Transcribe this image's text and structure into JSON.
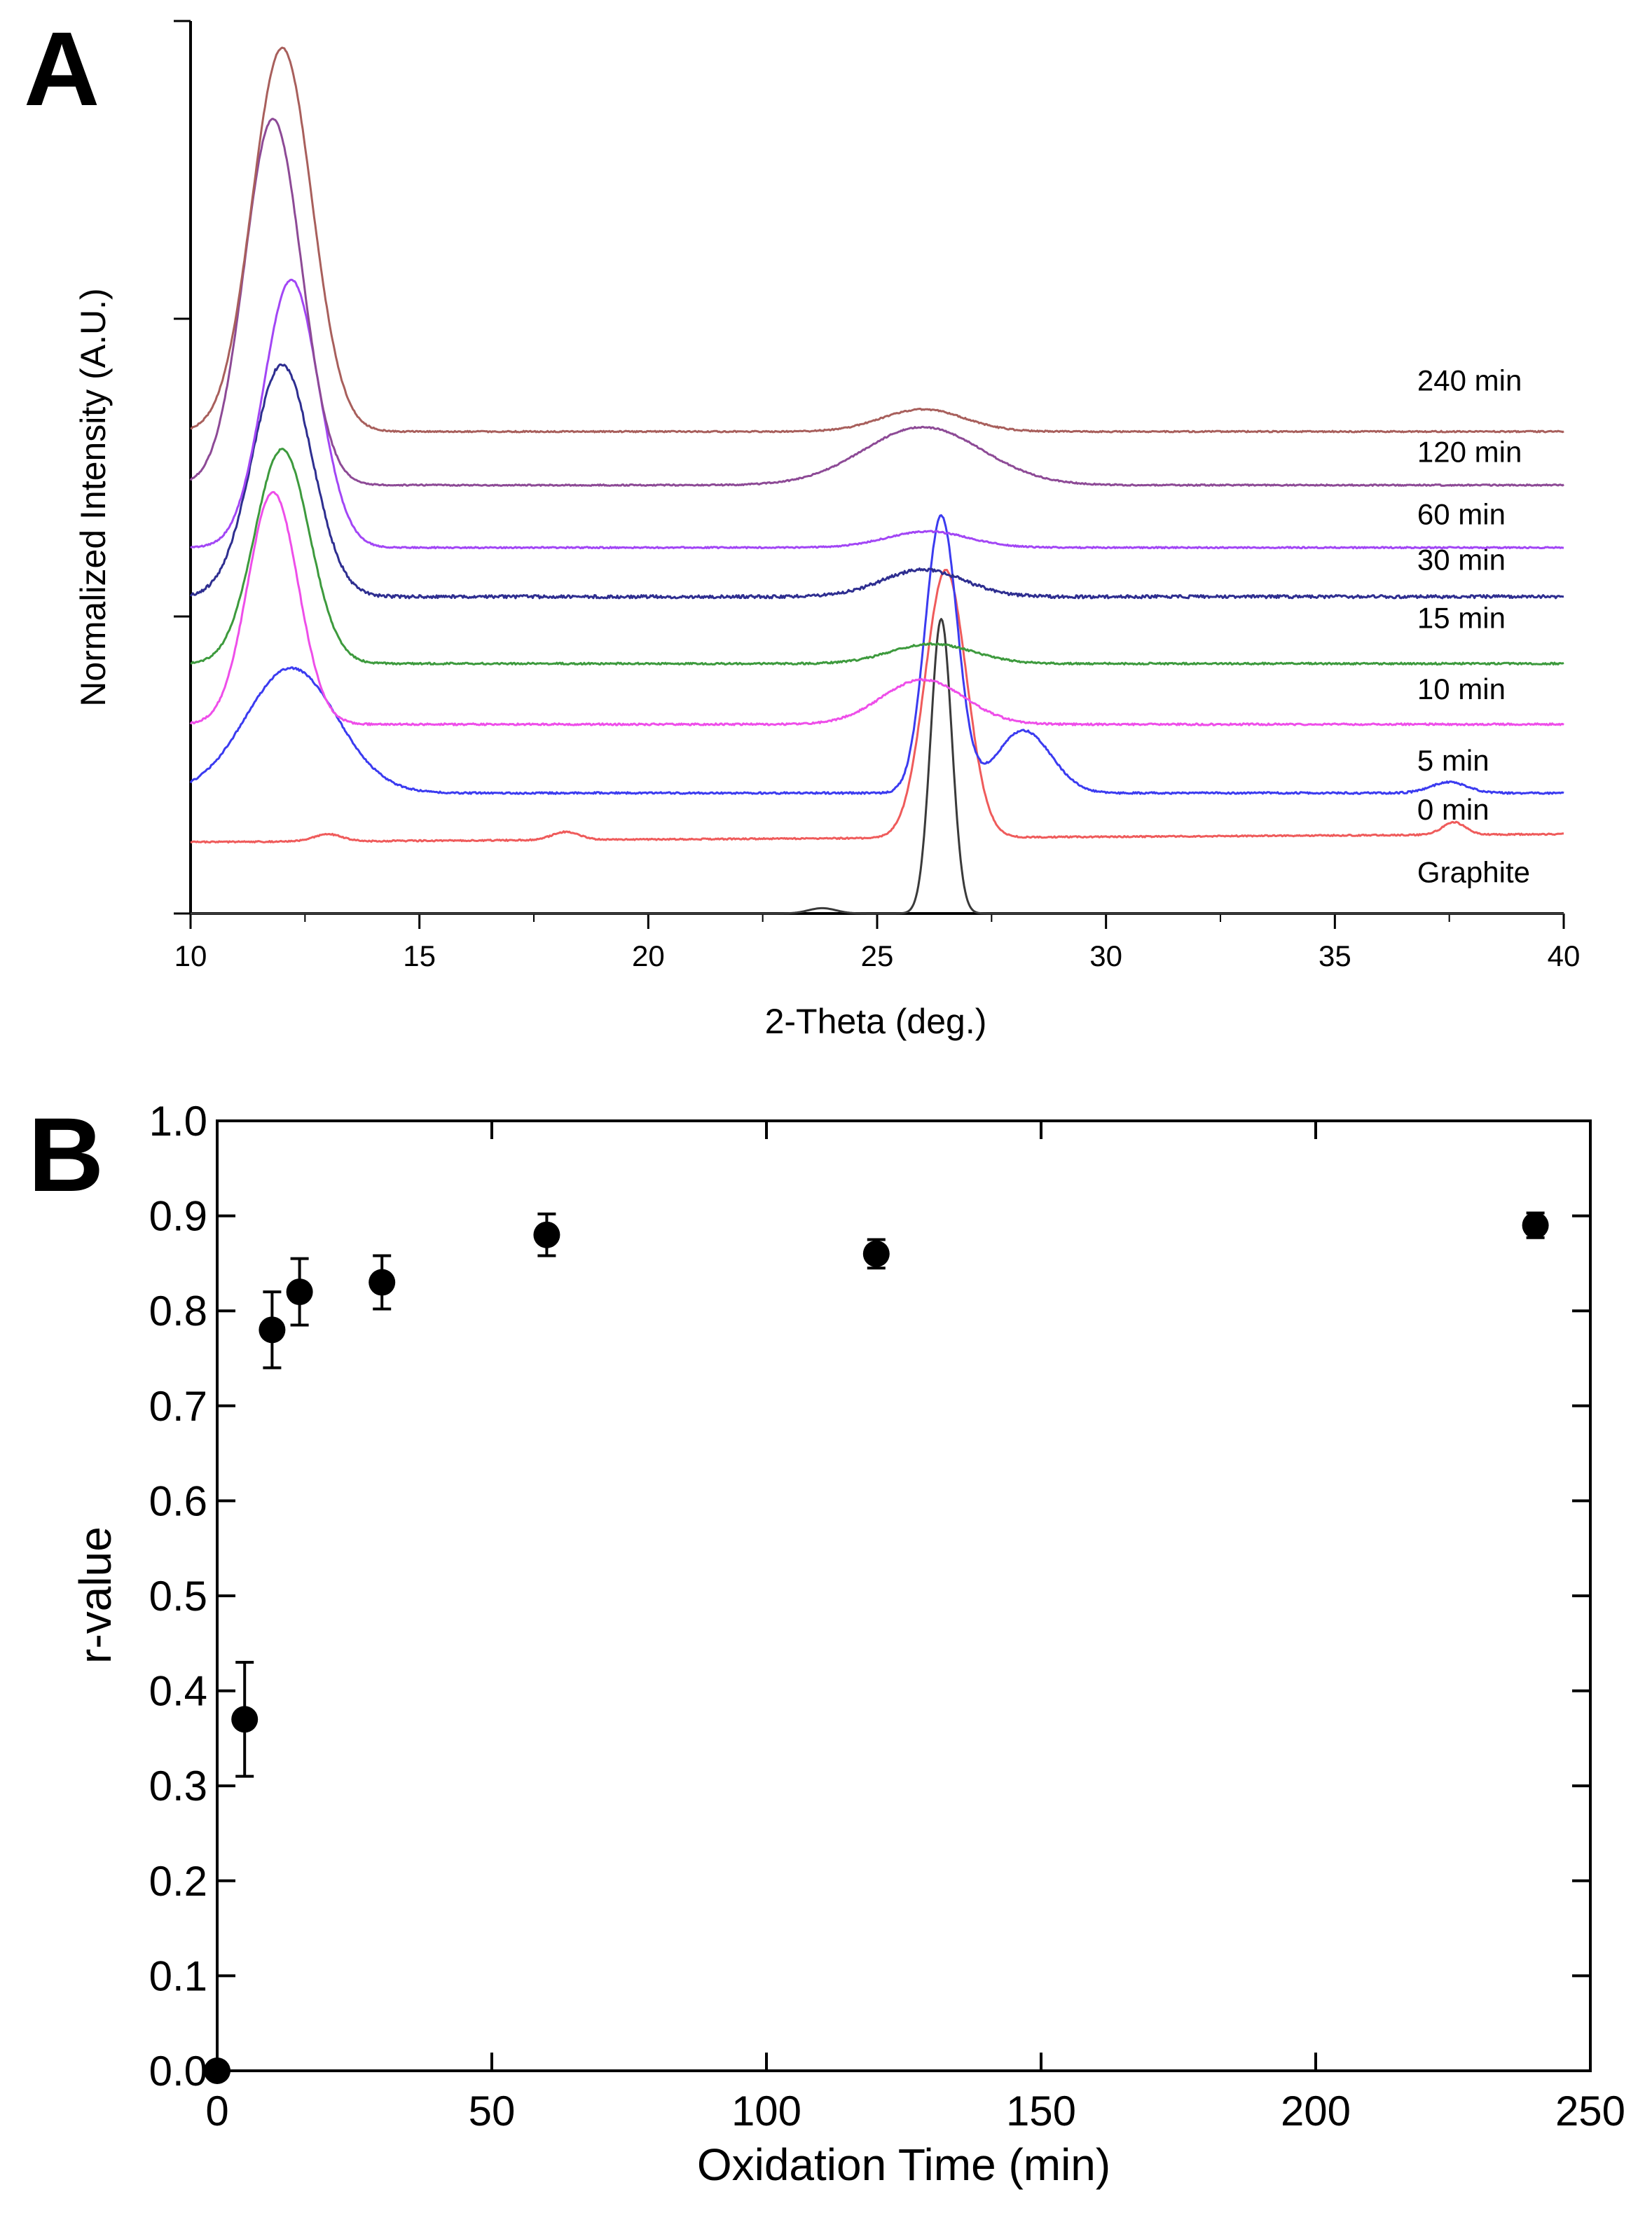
{
  "chart_data": [
    {
      "panel": "A",
      "type": "line",
      "xlabel": "2-Theta (deg.)",
      "ylabel": "Normalized Intensity (A.U.)",
      "xlim": [
        10,
        40
      ],
      "xticks": [
        10,
        15,
        20,
        25,
        30,
        35,
        40
      ],
      "grid": false,
      "series": [
        {
          "name": "Graphite",
          "color": "#3a3a3a",
          "baseline": 0.0,
          "label_x": 36.8,
          "label_y": 0.035,
          "peaks": [
            {
              "x": 26.4,
              "h": 0.33,
              "w": 0.23
            },
            {
              "x": 23.8,
              "h": 0.006,
              "w": 0.3
            }
          ],
          "noise": 0.0
        },
        {
          "name": "0 min",
          "color": "#ef5b5b",
          "baseline": 0.08,
          "slope": 0.0003,
          "label_x": 36.8,
          "label_y": 0.105,
          "peaks": [
            {
              "x": 26.5,
              "h": 0.3,
              "w": 0.45
            },
            {
              "x": 13.0,
              "h": 0.008,
              "w": 0.3
            },
            {
              "x": 18.2,
              "h": 0.009,
              "w": 0.3
            },
            {
              "x": 37.6,
              "h": 0.014,
              "w": 0.25
            }
          ],
          "noise": 0.0015
        },
        {
          "name": "5 min",
          "color": "#3b3bf0",
          "baseline": 0.135,
          "label_x": 36.8,
          "label_y": 0.16,
          "peaks": [
            {
              "x": 12.2,
              "h": 0.14,
              "w": 1.0
            },
            {
              "x": 26.4,
              "h": 0.31,
              "w": 0.35
            },
            {
              "x": 28.2,
              "h": 0.07,
              "w": 0.6
            },
            {
              "x": 37.5,
              "h": 0.012,
              "w": 0.4
            }
          ],
          "noise": 0.002
        },
        {
          "name": "10 min",
          "color": "#ee4ee9",
          "baseline": 0.212,
          "label_x": 36.8,
          "label_y": 0.24,
          "peaks": [
            {
              "x": 11.8,
              "h": 0.26,
              "w": 0.55
            },
            {
              "x": 26.0,
              "h": 0.05,
              "w": 0.9
            }
          ],
          "noise": 0.002
        },
        {
          "name": "15 min",
          "color": "#3d9a3d",
          "baseline": 0.28,
          "label_x": 36.8,
          "label_y": 0.32,
          "peaks": [
            {
              "x": 12.0,
              "h": 0.24,
              "w": 0.6
            },
            {
              "x": 26.2,
              "h": 0.022,
              "w": 0.9
            }
          ],
          "noise": 0.002
        },
        {
          "name": "30 min",
          "color": "#2e2e90",
          "baseline": 0.355,
          "label_x": 36.8,
          "label_y": 0.385,
          "peaks": [
            {
              "x": 12.0,
              "h": 0.26,
              "w": 0.65
            },
            {
              "x": 26.0,
              "h": 0.03,
              "w": 0.9
            }
          ],
          "noise": 0.0035
        },
        {
          "name": "60 min",
          "color": "#a246f5",
          "baseline": 0.41,
          "label_x": 36.8,
          "label_y": 0.436,
          "peaks": [
            {
              "x": 12.2,
              "h": 0.3,
              "w": 0.6
            },
            {
              "x": 26.1,
              "h": 0.018,
              "w": 0.9
            }
          ],
          "noise": 0.0015
        },
        {
          "name": "120 min",
          "color": "#8d4a96",
          "baseline": 0.48,
          "label_x": 36.8,
          "label_y": 0.506,
          "peaks": [
            {
              "x": 11.8,
              "h": 0.41,
              "w": 0.62
            },
            {
              "x": 26.0,
              "h": 0.065,
              "w": 1.3
            }
          ],
          "noise": 0.0015
        },
        {
          "name": "240 min",
          "color": "#a85f5c",
          "baseline": 0.54,
          "label_x": 36.8,
          "label_y": 0.586,
          "peaks": [
            {
              "x": 12.0,
              "h": 0.43,
              "w": 0.65
            },
            {
              "x": 26.0,
              "h": 0.025,
              "w": 0.9
            }
          ],
          "noise": 0.0015
        }
      ]
    },
    {
      "panel": "B",
      "type": "scatter",
      "xlabel": "Oxidation Time (min)",
      "ylabel": "r-value",
      "xlim": [
        0,
        250
      ],
      "ylim": [
        0.0,
        1.0
      ],
      "xticks": [
        0,
        50,
        100,
        150,
        200,
        250
      ],
      "yticks": [
        "0.0",
        "0.1",
        "0.2",
        "0.3",
        "0.4",
        "0.5",
        "0.6",
        "0.7",
        "0.8",
        "0.9",
        "1.0"
      ],
      "grid": false,
      "points": [
        {
          "x": 0,
          "y": 0.0,
          "err": 0.0
        },
        {
          "x": 5,
          "y": 0.37,
          "err": 0.06
        },
        {
          "x": 10,
          "y": 0.78,
          "err": 0.04
        },
        {
          "x": 15,
          "y": 0.82,
          "err": 0.035
        },
        {
          "x": 30,
          "y": 0.83,
          "err": 0.028
        },
        {
          "x": 60,
          "y": 0.88,
          "err": 0.022
        },
        {
          "x": 120,
          "y": 0.86,
          "err": 0.015
        },
        {
          "x": 240,
          "y": 0.89,
          "err": 0.013
        }
      ]
    }
  ],
  "panel_labels": {
    "a": "A",
    "b": "B"
  }
}
